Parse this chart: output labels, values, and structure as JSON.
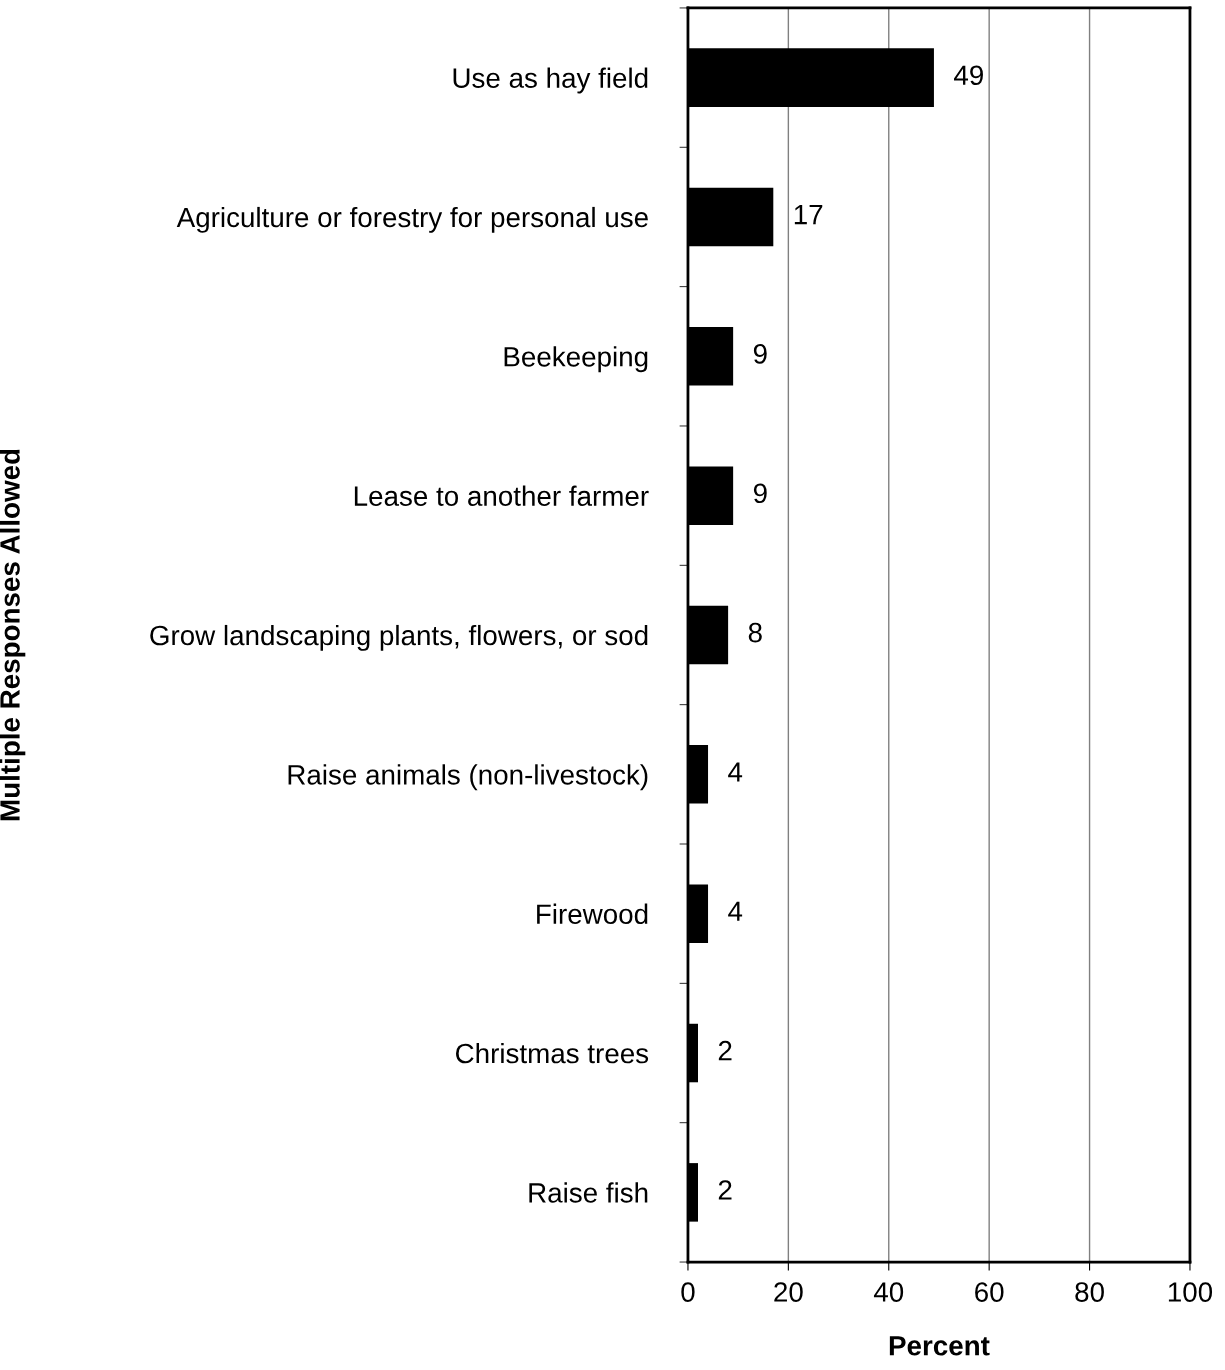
{
  "chart_data": {
    "type": "bar",
    "orientation": "horizontal",
    "xlabel": "Percent",
    "ylabel": "Multiple Responses Allowed",
    "categories": [
      "Use as hay field",
      "Agriculture or forestry for personal use",
      "Beekeeping",
      "Lease to another farmer",
      "Grow landscaping plants, flowers, or sod",
      "Raise animals (non-livestock)",
      "Firewood",
      "Christmas trees",
      "Raise fish"
    ],
    "values": [
      49,
      17,
      9,
      9,
      8,
      4,
      4,
      2,
      2
    ],
    "color": "#000000",
    "xlim": [
      0,
      100
    ],
    "xticks": [
      0,
      20,
      40,
      60,
      80,
      100
    ],
    "grid": "x",
    "data_labels": true,
    "legend": false
  }
}
